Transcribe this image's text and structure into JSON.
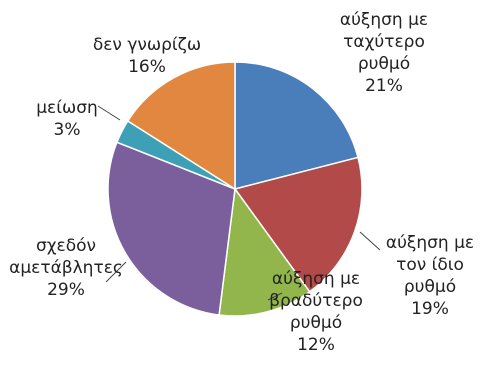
{
  "chart_data": {
    "type": "pie",
    "start_angle_deg": 0,
    "direction": "clockwise",
    "slices": [
      {
        "label_lines": [
          "αύξηση με",
          "ταχύτερο",
          "ρυθμό"
        ],
        "value": 21,
        "value_label": "21%",
        "color": "#4a7ebb"
      },
      {
        "label_lines": [
          "αύξηση με",
          "τον ίδιο",
          "ρυθμό"
        ],
        "value": 19,
        "value_label": "19%",
        "color": "#b14a48"
      },
      {
        "label_lines": [
          "αύξηση με",
          "βραδύτερο",
          "ρυθμό"
        ],
        "value": 12,
        "value_label": "12%",
        "color": "#92b64b"
      },
      {
        "label_lines": [
          "σχεδόν",
          "αμετάβλητες"
        ],
        "value": 29,
        "value_label": "29%",
        "color": "#7b5f9c"
      },
      {
        "label_lines": [
          "μείωση"
        ],
        "value": 3,
        "value_label": "3%",
        "color": "#3ea0b6"
      },
      {
        "label_lines": [
          "δεν γνωρίζω"
        ],
        "value": 16,
        "value_label": "16%",
        "color": "#e2873f"
      }
    ]
  }
}
